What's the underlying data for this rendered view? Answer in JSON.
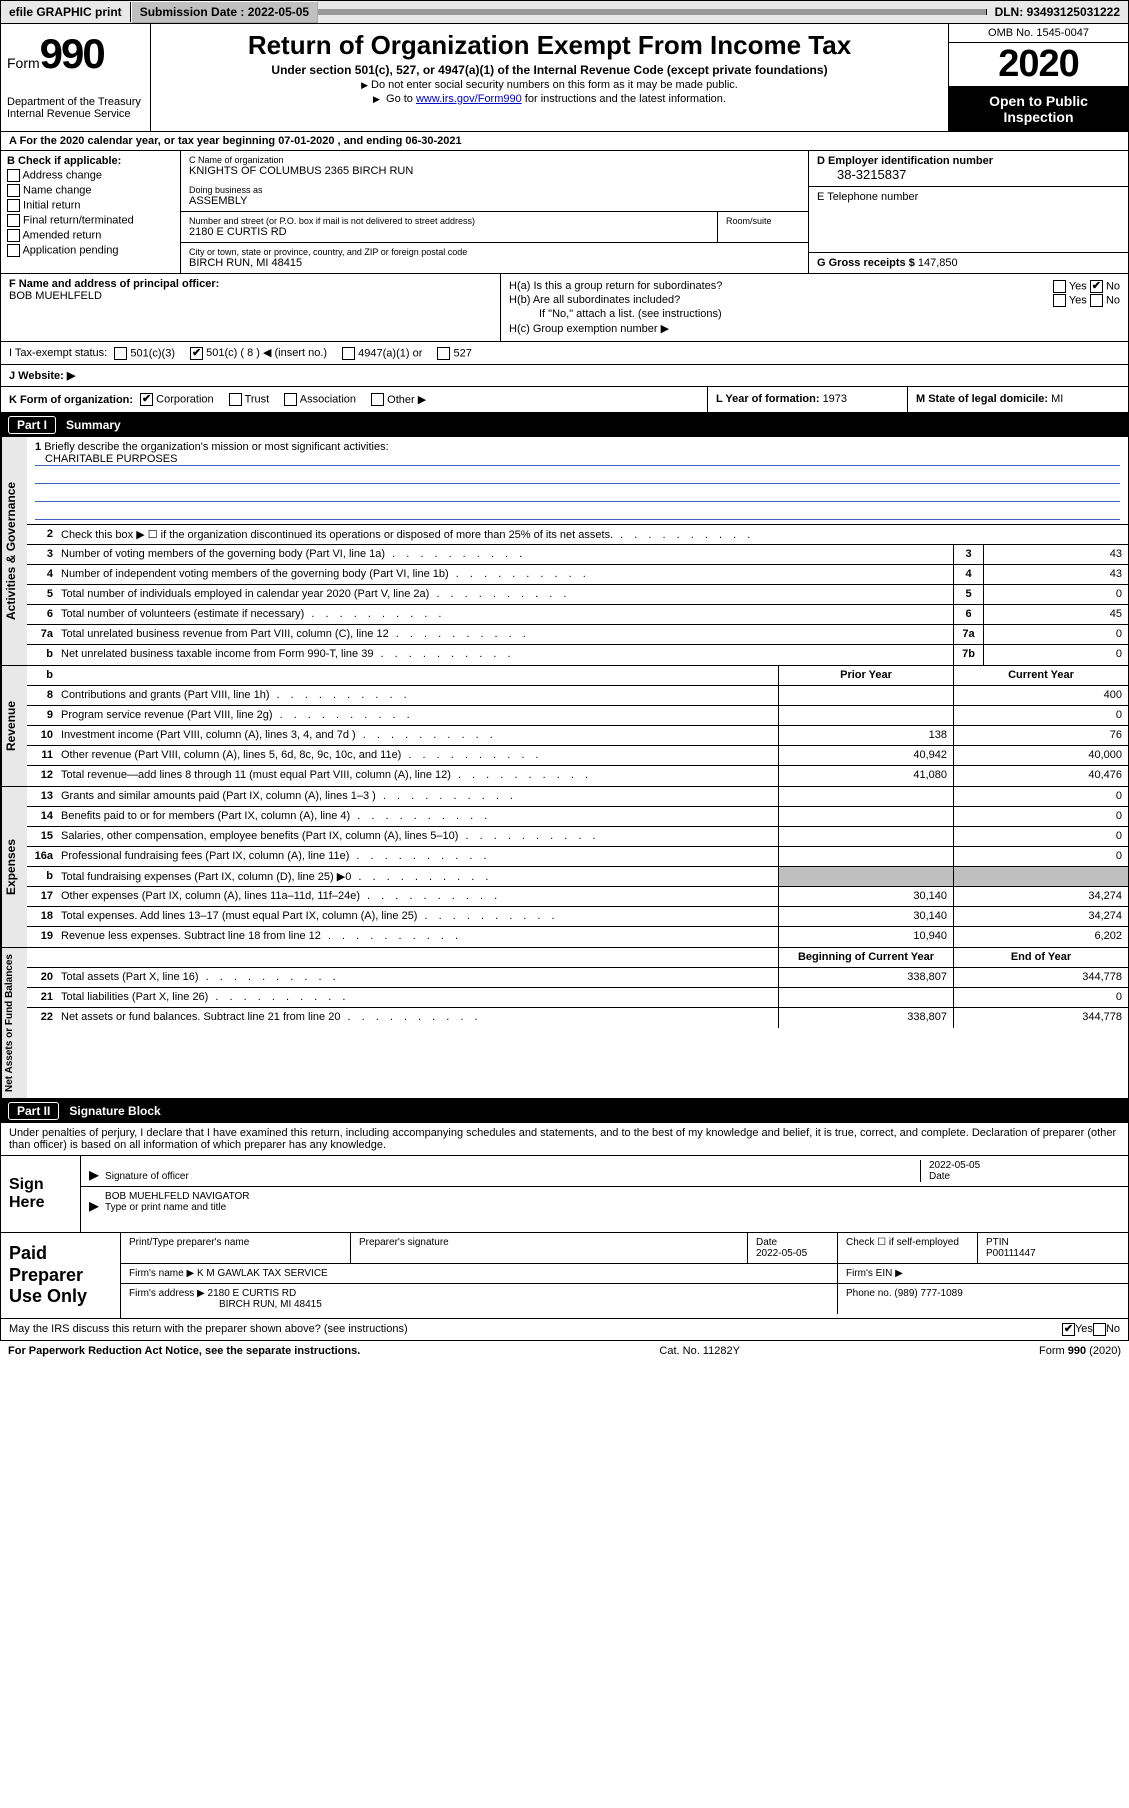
{
  "topbar": {
    "efile": "efile GRAPHIC print",
    "submission_label": "Submission Date : ",
    "submission_date": "2022-05-05",
    "dln_label": "DLN: ",
    "dln": "93493125031222"
  },
  "header": {
    "form_word": "Form",
    "form_num": "990",
    "dept1": "Department of the Treasury",
    "dept2": "Internal Revenue Service",
    "title": "Return of Organization Exempt From Income Tax",
    "subtitle": "Under section 501(c), 527, or 4947(a)(1) of the Internal Revenue Code (except private foundations)",
    "note1": "Do not enter social security numbers on this form as it may be made public.",
    "note2_pre": "Go to ",
    "note2_link": "www.irs.gov/Form990",
    "note2_post": " for instructions and the latest information.",
    "omb": "OMB No. 1545-0047",
    "year": "2020",
    "open": "Open to Public Inspection"
  },
  "line_a": "A For the 2020 calendar year, or tax year beginning 07-01-2020    , and ending 06-30-2021",
  "col_b": {
    "hdr": "B Check if applicable:",
    "opts": [
      "Address change",
      "Name change",
      "Initial return",
      "Final return/terminated",
      "Amended return",
      "Application pending"
    ]
  },
  "col_c": {
    "name_lbl": "C Name of organization",
    "name": "KNIGHTS OF COLUMBUS 2365 BIRCH RUN",
    "dba_lbl": "Doing business as",
    "dba": "ASSEMBLY",
    "addr_lbl": "Number and street (or P.O. box if mail is not delivered to street address)",
    "addr": "2180 E CURTIS RD",
    "room_lbl": "Room/suite",
    "city_lbl": "City or town, state or province, country, and ZIP or foreign postal code",
    "city": "BIRCH RUN, MI  48415"
  },
  "col_d": {
    "ein_lbl": "D Employer identification number",
    "ein": "38-3215837",
    "tel_lbl": "E Telephone number",
    "gross_lbl": "G Gross receipts $ ",
    "gross": "147,850"
  },
  "fg": {
    "f_lbl": "F Name and address of principal officer:",
    "f_name": "BOB MUEHLFELD",
    "ha": "H(a)  Is this a group return for subordinates?",
    "hb": "H(b)  Are all subordinates included?",
    "hb_note": "If \"No,\" attach a list. (see instructions)",
    "hc": "H(c)  Group exemption number ▶",
    "yes": "Yes",
    "no": "No"
  },
  "tax": {
    "lbl": "I   Tax-exempt status:",
    "o1": "501(c)(3)",
    "o2": "501(c) ( 8 ) ◀ (insert no.)",
    "o3": "4947(a)(1) or",
    "o4": "527"
  },
  "web": {
    "lbl": "J   Website: ▶"
  },
  "klm": {
    "k_lbl": "K Form of organization:",
    "k_opts": [
      "Corporation",
      "Trust",
      "Association",
      "Other ▶"
    ],
    "l_lbl": "L Year of formation: ",
    "l_val": "1973",
    "m_lbl": "M State of legal domicile: ",
    "m_val": "MI"
  },
  "part1": {
    "num": "Part I",
    "title": "Summary"
  },
  "mission": {
    "num": "1",
    "txt": "Briefly describe the organization's mission or most significant activities:",
    "val": "CHARITABLE PURPOSES"
  },
  "rows_ag": [
    {
      "n": "2",
      "t": "Check this box ▶ ☐  if the organization discontinued its operations or disposed of more than 25% of its net assets.",
      "noval": true
    },
    {
      "n": "3",
      "t": "Number of voting members of the governing body (Part VI, line 1a)",
      "bn": "3",
      "bv": "43"
    },
    {
      "n": "4",
      "t": "Number of independent voting members of the governing body (Part VI, line 1b)",
      "bn": "4",
      "bv": "43"
    },
    {
      "n": "5",
      "t": "Total number of individuals employed in calendar year 2020 (Part V, line 2a)",
      "bn": "5",
      "bv": "0"
    },
    {
      "n": "6",
      "t": "Total number of volunteers (estimate if necessary)",
      "bn": "6",
      "bv": "45"
    },
    {
      "n": "7a",
      "t": "Total unrelated business revenue from Part VIII, column (C), line 12",
      "bn": "7a",
      "bv": "0"
    },
    {
      "n": "b",
      "t": "Net unrelated business taxable income from Form 990-T, line 39",
      "bn": "7b",
      "bv": "0"
    }
  ],
  "col_hdrs": {
    "py": "Prior Year",
    "cy": "Current Year"
  },
  "rows_rev": [
    {
      "n": "8",
      "t": "Contributions and grants (Part VIII, line 1h)",
      "py": "",
      "cy": "400"
    },
    {
      "n": "9",
      "t": "Program service revenue (Part VIII, line 2g)",
      "py": "",
      "cy": "0"
    },
    {
      "n": "10",
      "t": "Investment income (Part VIII, column (A), lines 3, 4, and 7d )",
      "py": "138",
      "cy": "76"
    },
    {
      "n": "11",
      "t": "Other revenue (Part VIII, column (A), lines 5, 6d, 8c, 9c, 10c, and 11e)",
      "py": "40,942",
      "cy": "40,000"
    },
    {
      "n": "12",
      "t": "Total revenue—add lines 8 through 11 (must equal Part VIII, column (A), line 12)",
      "py": "41,080",
      "cy": "40,476"
    }
  ],
  "rows_exp": [
    {
      "n": "13",
      "t": "Grants and similar amounts paid (Part IX, column (A), lines 1–3 )",
      "py": "",
      "cy": "0"
    },
    {
      "n": "14",
      "t": "Benefits paid to or for members (Part IX, column (A), line 4)",
      "py": "",
      "cy": "0"
    },
    {
      "n": "15",
      "t": "Salaries, other compensation, employee benefits (Part IX, column (A), lines 5–10)",
      "py": "",
      "cy": "0"
    },
    {
      "n": "16a",
      "t": "Professional fundraising fees (Part IX, column (A), line 11e)",
      "py": "",
      "cy": "0"
    },
    {
      "n": "b",
      "t": "Total fundraising expenses (Part IX, column (D), line 25) ▶0",
      "py": "GRAY",
      "cy": "GRAY"
    },
    {
      "n": "17",
      "t": "Other expenses (Part IX, column (A), lines 11a–11d, 11f–24e)",
      "py": "30,140",
      "cy": "34,274"
    },
    {
      "n": "18",
      "t": "Total expenses. Add lines 13–17 (must equal Part IX, column (A), line 25)",
      "py": "30,140",
      "cy": "34,274"
    },
    {
      "n": "19",
      "t": "Revenue less expenses. Subtract line 18 from line 12",
      "py": "10,940",
      "cy": "6,202"
    }
  ],
  "col_hdrs2": {
    "py": "Beginning of Current Year",
    "cy": "End of Year"
  },
  "rows_net": [
    {
      "n": "20",
      "t": "Total assets (Part X, line 16)",
      "py": "338,807",
      "cy": "344,778"
    },
    {
      "n": "21",
      "t": "Total liabilities (Part X, line 26)",
      "py": "",
      "cy": "0"
    },
    {
      "n": "22",
      "t": "Net assets or fund balances. Subtract line 21 from line 20",
      "py": "338,807",
      "cy": "344,778"
    }
  ],
  "vlabels": {
    "ag": "Activities & Governance",
    "rev": "Revenue",
    "exp": "Expenses",
    "net": "Net Assets or Fund Balances"
  },
  "part2": {
    "num": "Part II",
    "title": "Signature Block"
  },
  "sig": {
    "intro": "Under penalties of perjury, I declare that I have examined this return, including accompanying schedules and statements, and to the best of my knowledge and belief, it is true, correct, and complete. Declaration of preparer (other than officer) is based on all information of which preparer has any knowledge.",
    "sign_here": "Sign Here",
    "sig_officer": "Signature of officer",
    "date_lbl": "Date",
    "date": "2022-05-05",
    "name_title": "BOB MUEHLFELD NAVIGATOR",
    "type_lbl": "Type or print name and title"
  },
  "paid": {
    "title": "Paid Preparer Use Only",
    "h1": "Print/Type preparer's name",
    "h2": "Preparer's signature",
    "h3_l": "Date",
    "h3": "2022-05-05",
    "h4": "Check ☐  if self-employed",
    "h5_l": "PTIN",
    "h5": "P00111447",
    "firm_name_lbl": "Firm's name    ▶",
    "firm_name": "K M GAWLAK TAX SERVICE",
    "firm_ein_lbl": "Firm's EIN ▶",
    "firm_addr_lbl": "Firm's address ▶",
    "firm_addr1": "2180 E CURTIS RD",
    "firm_addr2": "BIRCH RUN, MI  48415",
    "phone_lbl": "Phone no. ",
    "phone": "(989) 777-1089"
  },
  "irs_q": "May the IRS discuss this return with the preparer shown above? (see instructions)",
  "footer": {
    "left": "For Paperwork Reduction Act Notice, see the separate instructions.",
    "mid": "Cat. No. 11282Y",
    "right": "Form 990 (2020)"
  }
}
